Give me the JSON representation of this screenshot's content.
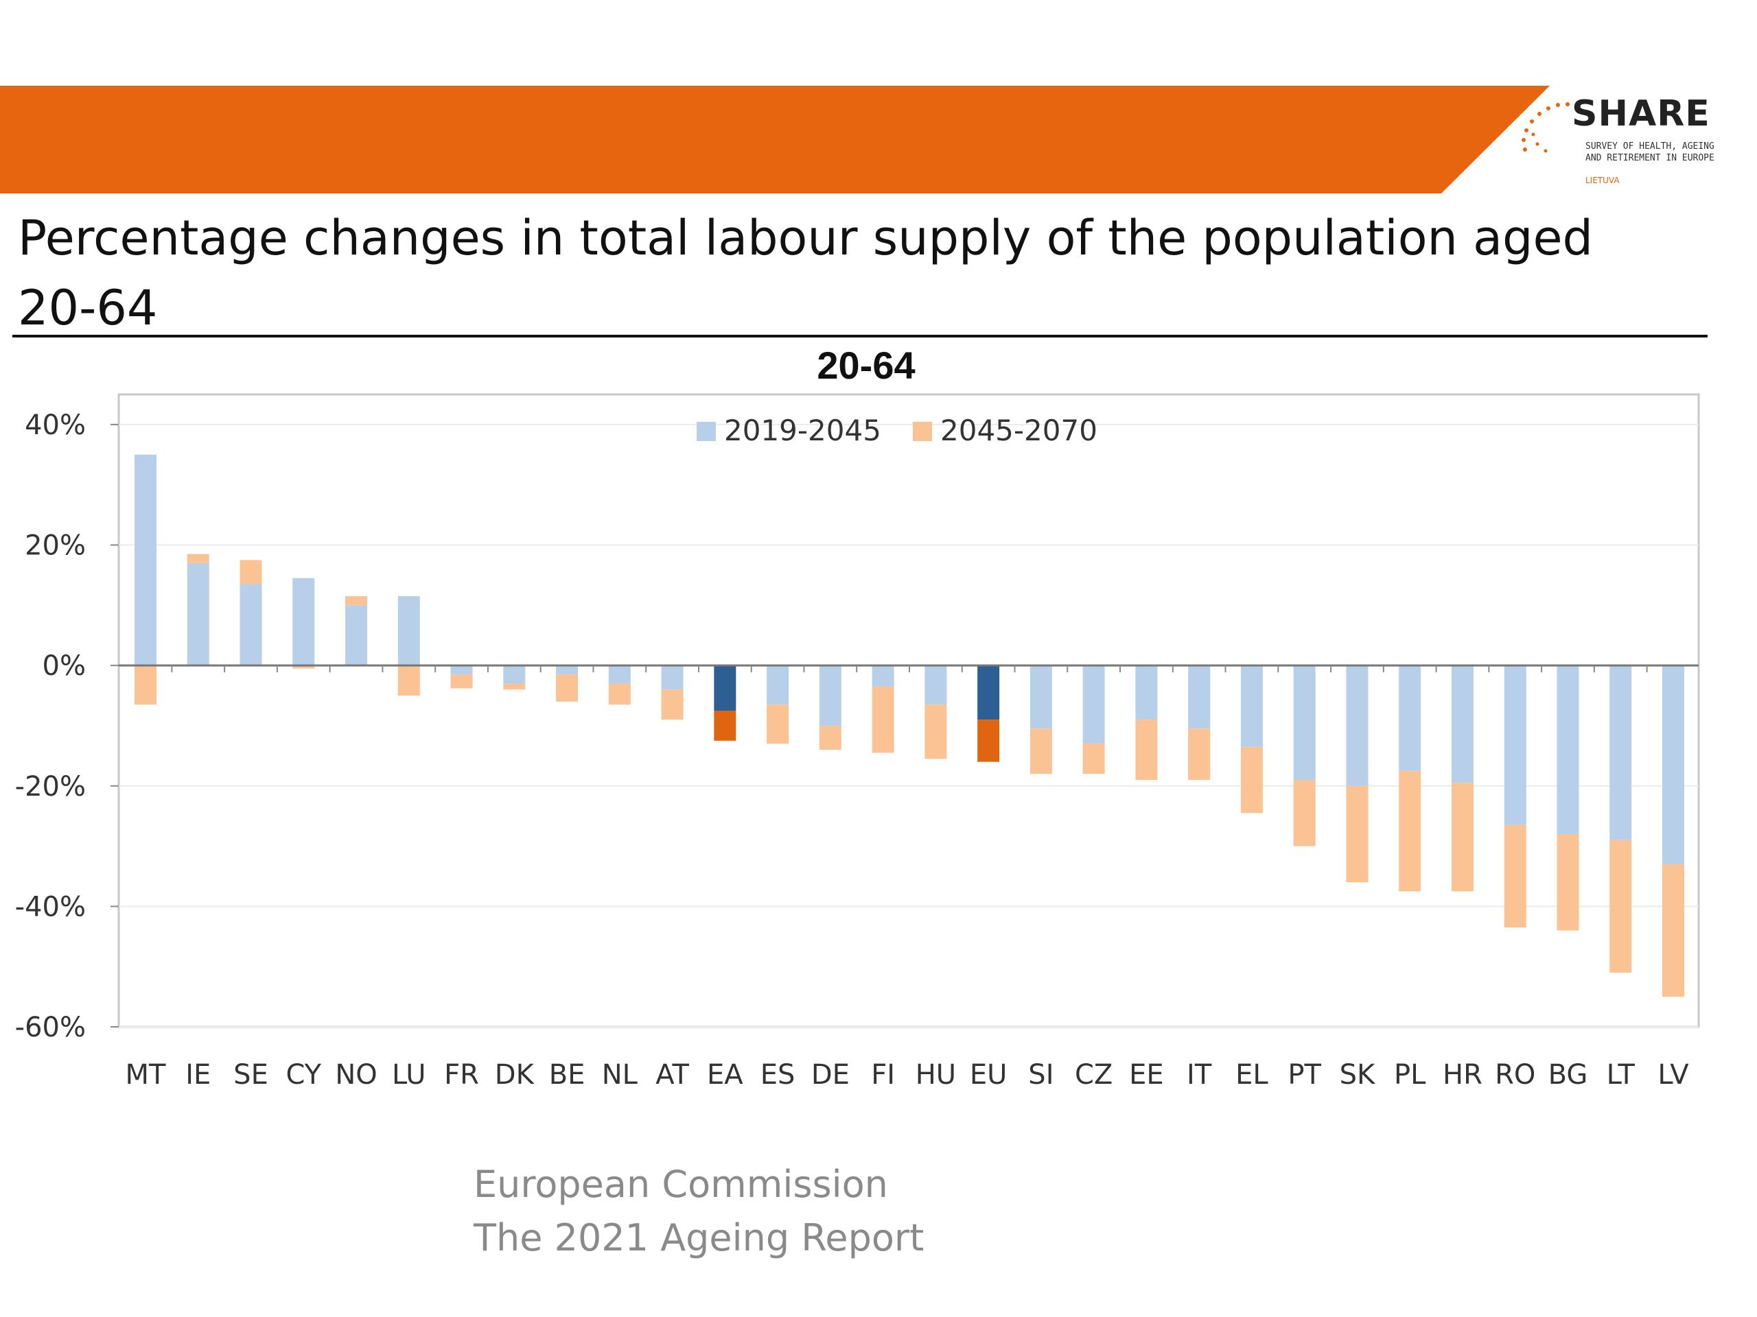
{
  "header": {
    "title": "Percentage changes in total labour supply of the population aged 20-64",
    "banner_color": "#e8650f"
  },
  "logo": {
    "name": "SHARE",
    "tagline_line1": "SURVEY OF HEALTH, AGEING",
    "tagline_line2": "AND RETIREMENT IN EUROPE",
    "country": "LIETUVA"
  },
  "chart_data": {
    "type": "bar",
    "stacked": true,
    "title": "20-64",
    "xlabel": "",
    "ylabel": "",
    "ylim": [
      -60,
      45
    ],
    "yticks": [
      40,
      20,
      0,
      -20,
      -40,
      -60
    ],
    "ytick_labels": [
      "40%",
      "20%",
      "0%",
      "-20%",
      "-40%",
      "-60%"
    ],
    "grid": true,
    "legend_position": "top-center",
    "categories": [
      "MT",
      "IE",
      "SE",
      "CY",
      "NO",
      "LU",
      "FR",
      "DK",
      "BE",
      "NL",
      "AT",
      "EA",
      "ES",
      "DE",
      "FI",
      "HU",
      "EU",
      "SI",
      "CZ",
      "EE",
      "IT",
      "EL",
      "PT",
      "SK",
      "PL",
      "HR",
      "RO",
      "BG",
      "LT",
      "LV"
    ],
    "highlighted_categories": [
      "EA",
      "EU"
    ],
    "series": [
      {
        "name": "2019-2045",
        "color": "#b8cfe9",
        "highlight_color": "#2e5f94",
        "values": [
          35,
          17,
          13.5,
          14.5,
          10,
          11.5,
          -1.5,
          -3,
          -1.5,
          -3,
          -4,
          -7.5,
          -6.5,
          -10,
          -3.5,
          -6.5,
          -9,
          -10.5,
          -13,
          -9,
          -10.5,
          -13.5,
          -19,
          -20,
          -17.5,
          -19.5,
          -26.5,
          -28,
          -29,
          -33
        ]
      },
      {
        "name": "2045-2070",
        "color": "#fbc393",
        "highlight_color": "#e06510",
        "values": [
          -6.5,
          1.5,
          4,
          -0.5,
          1.5,
          -5,
          -2.3,
          -1,
          -4.5,
          -3.5,
          -5,
          -5,
          -6.5,
          -4,
          -11,
          -9,
          -7,
          -7.5,
          -5,
          -10,
          -8.5,
          -11,
          -11,
          -16,
          -20,
          -18,
          -17,
          -16,
          -22,
          -22
        ]
      }
    ]
  },
  "source": {
    "line1": "European Commission",
    "line2": "The 2021 Ageing Report"
  }
}
